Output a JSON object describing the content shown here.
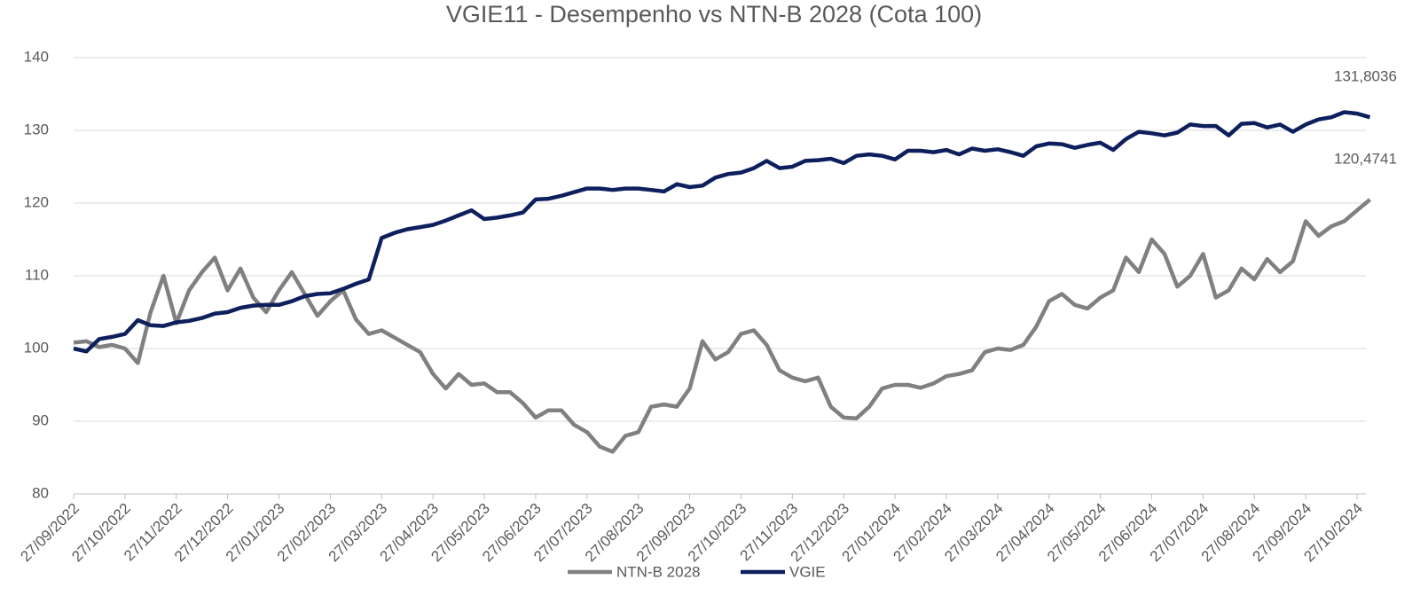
{
  "chart_data": {
    "type": "line",
    "title": "VGIE11 - Desempenho vs NTN-B 2028 (Cota 100)",
    "categories": [
      "27/09/2022",
      null,
      null,
      null,
      "27/10/2022",
      null,
      null,
      null,
      "27/11/2022",
      null,
      null,
      null,
      "27/12/2022",
      null,
      null,
      null,
      "27/01/2023",
      null,
      null,
      null,
      "27/02/2023",
      null,
      null,
      null,
      "27/03/2023",
      null,
      null,
      null,
      "27/04/2023",
      null,
      null,
      null,
      "27/05/2023",
      null,
      null,
      null,
      "27/06/2023",
      null,
      null,
      null,
      "27/07/2023",
      null,
      null,
      null,
      "27/08/2023",
      null,
      null,
      null,
      "27/09/2023",
      null,
      null,
      null,
      "27/10/2023",
      null,
      null,
      null,
      "27/11/2023",
      null,
      null,
      null,
      "27/12/2023",
      null,
      null,
      null,
      "27/01/2024",
      null,
      null,
      null,
      "27/02/2024",
      null,
      null,
      null,
      "27/03/2024",
      null,
      null,
      null,
      "27/04/2024",
      null,
      null,
      null,
      "27/05/2024",
      null,
      null,
      null,
      "27/06/2024",
      null,
      null,
      null,
      "27/07/2024",
      null,
      null,
      null,
      "27/08/2024",
      null,
      null,
      null,
      "27/09/2024",
      null,
      null,
      null,
      "27/10/2024",
      null
    ],
    "series": [
      {
        "name": "NTN-B 2028",
        "color": "#808080",
        "values": [
          100.8,
          101.0,
          100.2,
          100.5,
          100.0,
          98.0,
          105.0,
          110.0,
          103.5,
          108.0,
          110.5,
          112.5,
          108.0,
          111.0,
          107.0,
          105.0,
          108.0,
          110.5,
          107.5,
          104.5,
          106.5,
          108.0,
          104.0,
          102.0,
          102.5,
          101.5,
          100.5,
          99.5,
          96.5,
          94.5,
          96.5,
          95.0,
          95.2,
          94.0,
          94.0,
          92.5,
          90.5,
          91.5,
          91.5,
          89.5,
          88.5,
          86.5,
          85.8,
          88.0,
          88.5,
          92.0,
          92.3,
          92.0,
          94.5,
          101.0,
          98.5,
          99.5,
          102.0,
          102.5,
          100.5,
          97.0,
          96.0,
          95.5,
          96.0,
          92.0,
          90.5,
          90.4,
          92.0,
          94.5,
          95.0,
          95.0,
          94.6,
          95.2,
          96.2,
          96.5,
          97.0,
          99.5,
          100.0,
          99.8,
          100.5,
          103.0,
          106.5,
          107.5,
          106.0,
          105.5,
          107.0,
          108.0,
          112.5,
          110.5,
          115.0,
          113.0,
          108.5,
          110.0,
          113.0,
          107.0,
          108.0,
          111.0,
          109.5,
          112.3,
          110.5,
          112.0,
          117.5,
          115.5,
          116.8,
          117.5,
          119.0,
          120.4741
        ],
        "value_labels": {
          "101": "120,4741"
        }
      },
      {
        "name": "VGIE",
        "color": "#0d1f5c",
        "values": [
          100.0,
          99.6,
          101.3,
          101.6,
          102.0,
          103.9,
          103.2,
          103.1,
          103.6,
          103.8,
          104.2,
          104.8,
          105.0,
          105.6,
          105.9,
          106.0,
          106.0,
          106.5,
          107.2,
          107.5,
          107.6,
          108.2,
          108.9,
          109.5,
          115.2,
          115.9,
          116.4,
          116.7,
          117.0,
          117.6,
          118.3,
          119.0,
          117.8,
          118.0,
          118.3,
          118.7,
          120.5,
          120.6,
          121.0,
          121.5,
          122.0,
          122.0,
          121.8,
          122.0,
          122.0,
          121.8,
          121.6,
          122.6,
          122.2,
          122.4,
          123.5,
          124.0,
          124.2,
          124.8,
          125.8,
          124.8,
          125.0,
          125.8,
          125.9,
          126.1,
          125.5,
          126.5,
          126.7,
          126.5,
          126.0,
          127.2,
          127.2,
          127.0,
          127.3,
          126.7,
          127.5,
          127.2,
          127.4,
          127.0,
          126.5,
          127.8,
          128.2,
          128.1,
          127.6,
          128.0,
          128.3,
          127.3,
          128.8,
          129.8,
          129.6,
          129.3,
          129.7,
          130.8,
          130.6,
          130.6,
          129.3,
          130.9,
          131.0,
          130.4,
          130.8,
          129.8,
          130.8,
          131.5,
          131.8,
          132.5,
          132.3,
          131.8036
        ],
        "value_labels": {
          "101": "131,8036"
        }
      }
    ],
    "ylim": [
      80,
      140
    ],
    "yticks": [
      80,
      90,
      100,
      110,
      120,
      130,
      140
    ],
    "grid": true,
    "legend": "bottom"
  }
}
